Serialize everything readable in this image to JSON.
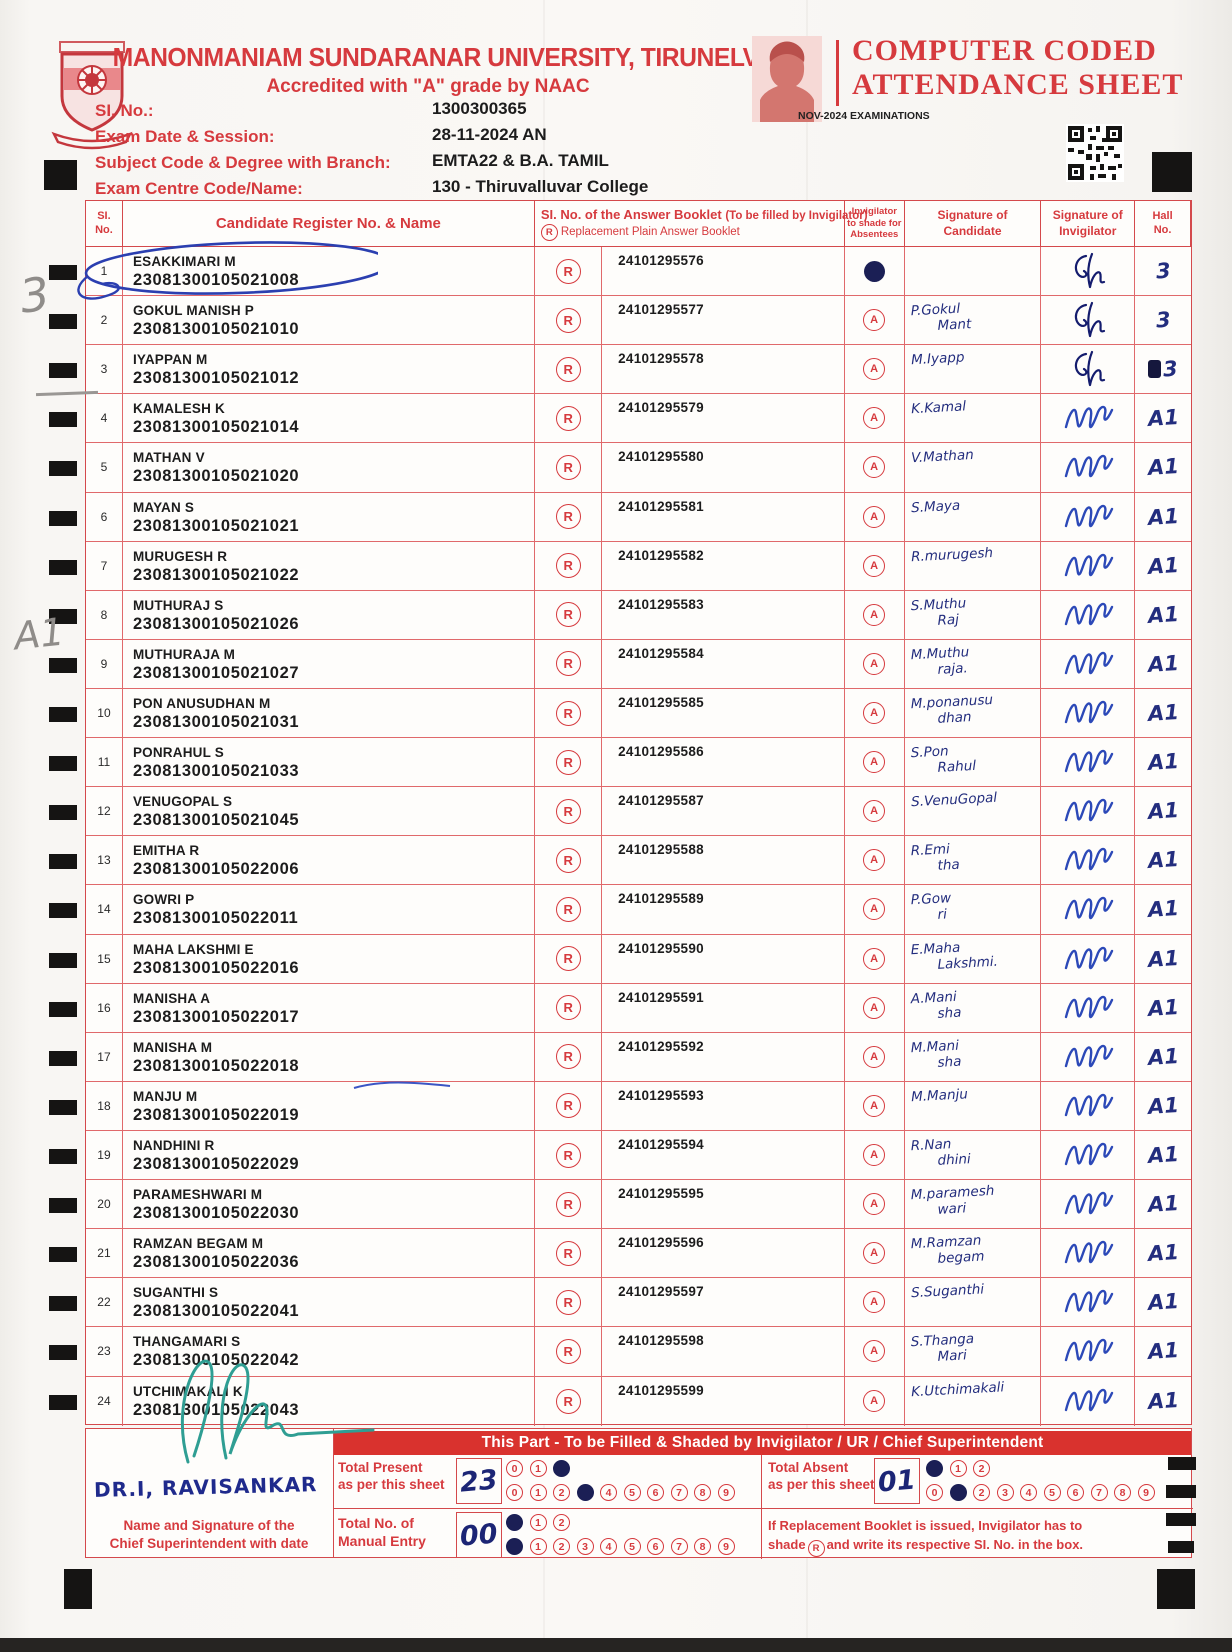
{
  "header": {
    "university": "MANONMANIAM SUNDARANAR UNIVERSITY, TIRUNELVELI",
    "accreditation": "Accredited with \"A\" grade by NAAC",
    "sheet_title_line1": "COMPUTER  CODED",
    "sheet_title_line2": "ATTENDANCE SHEET",
    "exam_session": "NOV-2024 EXAMINATIONS",
    "fields": [
      {
        "label": "SI. No.:",
        "value": "1300300365"
      },
      {
        "label": "Exam Date & Session:",
        "value": "28-11-2024 AN"
      },
      {
        "label": "Subject Code & Degree with Branch:",
        "value": "EMTA22 & B.A. TAMIL"
      },
      {
        "label": "Exam Centre Code/Name:",
        "value": "130 - Thiruvalluvar College"
      }
    ]
  },
  "table": {
    "headers": {
      "si_no": "SI.\nNo.",
      "si_no_l1": "SI.",
      "si_no_l2": "No.",
      "candidate": "Candidate Register No. & Name",
      "booklet_bold": "SI. No. of the Answer Booklet",
      "booklet_light": "(To be filled by Invigilator)",
      "booklet_l2": "Replacement Plain Answer Booklet",
      "absentee_l1": "Invigilator",
      "absentee_l2": "to shade for",
      "absentee_l3": "Absentees",
      "sig_cand_l1": "Signature of",
      "sig_cand_l2": "Candidate",
      "sig_inv_l1": "Signature of",
      "sig_inv_l2": "Invigilator",
      "hall_l1": "Hall",
      "hall_l2": "No."
    },
    "symbols": {
      "replacement": "R",
      "absent": "A"
    },
    "rows": [
      {
        "no": "1",
        "name": "ESAKKIMARI M",
        "reg": "23081300105021008",
        "booklet": "24101295576",
        "absent_shaded": true,
        "cand_sig": [],
        "inv_sig": "EM",
        "hall": "3"
      },
      {
        "no": "2",
        "name": "GOKUL MANISH P",
        "reg": "23081300105021010",
        "absent_shaded": false,
        "booklet": "24101295577",
        "cand_sig": [
          "P.Gokul",
          "Mant"
        ],
        "inv_sig": "EM",
        "hall": "3"
      },
      {
        "no": "3",
        "name": "IYAPPAN M",
        "reg": "23081300105021012",
        "absent_shaded": false,
        "booklet": "24101295578",
        "cand_sig": [
          "M.Iyapp"
        ],
        "inv_sig": "EM",
        "hall": "3",
        "hall_blob": true
      },
      {
        "no": "4",
        "name": "KAMALESH K",
        "reg": "23081300105021014",
        "absent_shaded": false,
        "booklet": "24101295579",
        "cand_sig": [
          "K.Kamal"
        ],
        "inv_sig": "W",
        "hall": "A1"
      },
      {
        "no": "5",
        "name": "MATHAN V",
        "reg": "23081300105021020",
        "absent_shaded": false,
        "booklet": "24101295580",
        "cand_sig": [
          "V.Mathan"
        ],
        "inv_sig": "W",
        "hall": "A1"
      },
      {
        "no": "6",
        "name": "MAYAN S",
        "reg": "23081300105021021",
        "absent_shaded": false,
        "booklet": "24101295581",
        "cand_sig": [
          "S.Maya"
        ],
        "inv_sig": "W",
        "hall": "A1"
      },
      {
        "no": "7",
        "name": "MURUGESH R",
        "reg": "23081300105021022",
        "absent_shaded": false,
        "booklet": "24101295582",
        "cand_sig": [
          "R.murugesh"
        ],
        "inv_sig": "W",
        "hall": "A1"
      },
      {
        "no": "8",
        "name": "MUTHURAJ S",
        "reg": "23081300105021026",
        "absent_shaded": false,
        "booklet": "24101295583",
        "cand_sig": [
          "S.Muthu",
          "Raj"
        ],
        "inv_sig": "W",
        "hall": "A1"
      },
      {
        "no": "9",
        "name": "MUTHURAJA M",
        "reg": "23081300105021027",
        "absent_shaded": false,
        "booklet": "24101295584",
        "cand_sig": [
          "M.Muthu",
          "raja."
        ],
        "inv_sig": "W",
        "hall": "A1"
      },
      {
        "no": "10",
        "name": "PON ANUSUDHAN M",
        "reg": "23081300105021031",
        "absent_shaded": false,
        "booklet": "24101295585",
        "cand_sig": [
          "M.ponanusu",
          "dhan"
        ],
        "inv_sig": "W",
        "hall": "A1"
      },
      {
        "no": "11",
        "name": "PONRAHUL S",
        "reg": "23081300105021033",
        "absent_shaded": false,
        "booklet": "24101295586",
        "cand_sig": [
          "S.Pon",
          "Rahul"
        ],
        "inv_sig": "W",
        "hall": "A1"
      },
      {
        "no": "12",
        "name": "VENUGOPAL S",
        "reg": "23081300105021045",
        "absent_shaded": false,
        "booklet": "24101295587",
        "cand_sig": [
          "S.VenuGopal"
        ],
        "inv_sig": "W",
        "hall": "A1"
      },
      {
        "no": "13",
        "name": "EMITHA R",
        "reg": "23081300105022006",
        "absent_shaded": false,
        "booklet": "24101295588",
        "cand_sig": [
          "R.Emi",
          "tha"
        ],
        "inv_sig": "W",
        "hall": "A1"
      },
      {
        "no": "14",
        "name": "GOWRI P",
        "reg": "23081300105022011",
        "absent_shaded": false,
        "booklet": "24101295589",
        "cand_sig": [
          "P.Gow",
          "ri"
        ],
        "inv_sig": "W",
        "hall": "A1"
      },
      {
        "no": "15",
        "name": "MAHA LAKSHMI E",
        "reg": "23081300105022016",
        "absent_shaded": false,
        "booklet": "24101295590",
        "cand_sig": [
          "E.Maha",
          "Lakshmi."
        ],
        "inv_sig": "W",
        "hall": "A1"
      },
      {
        "no": "16",
        "name": "MANISHA A",
        "reg": "23081300105022017",
        "absent_shaded": false,
        "booklet": "24101295591",
        "cand_sig": [
          "A.Mani",
          "sha"
        ],
        "inv_sig": "W",
        "hall": "A1"
      },
      {
        "no": "17",
        "name": "MANISHA M",
        "reg": "23081300105022018",
        "absent_shaded": false,
        "booklet": "24101295592",
        "cand_sig": [
          "M.Mani",
          "sha"
        ],
        "inv_sig": "W",
        "hall": "A1"
      },
      {
        "no": "18",
        "name": "MANJU M",
        "reg": "23081300105022019",
        "absent_shaded": false,
        "booklet": "24101295593",
        "cand_sig": [
          "M.Manju"
        ],
        "inv_sig": "W",
        "hall": "A1"
      },
      {
        "no": "19",
        "name": "NANDHINI R",
        "reg": "23081300105022029",
        "absent_shaded": false,
        "booklet": "24101295594",
        "cand_sig": [
          "R.Nan",
          "dhini"
        ],
        "inv_sig": "W",
        "hall": "A1"
      },
      {
        "no": "20",
        "name": "PARAMESHWARI M",
        "reg": "23081300105022030",
        "absent_shaded": false,
        "booklet": "24101295595",
        "cand_sig": [
          "M.paramesh",
          "wari"
        ],
        "inv_sig": "W",
        "hall": "A1"
      },
      {
        "no": "21",
        "name": "RAMZAN BEGAM M",
        "reg": "23081300105022036",
        "absent_shaded": false,
        "booklet": "24101295596",
        "cand_sig": [
          "M.Ramzan",
          "begam"
        ],
        "inv_sig": "W",
        "hall": "A1"
      },
      {
        "no": "22",
        "name": "SUGANTHI S",
        "reg": "23081300105022041",
        "absent_shaded": false,
        "booklet": "24101295597",
        "cand_sig": [
          "S.Suganthi"
        ],
        "inv_sig": "W",
        "hall": "A1"
      },
      {
        "no": "23",
        "name": "THANGAMARI S",
        "reg": "23081300105022042",
        "absent_shaded": false,
        "booklet": "24101295598",
        "cand_sig": [
          "S.Thanga",
          "Mari"
        ],
        "inv_sig": "W",
        "hall": "A1"
      },
      {
        "no": "24",
        "name": "UTCHIMAKALI K",
        "reg": "23081300105022043",
        "absent_shaded": false,
        "booklet": "24101295599",
        "cand_sig": [
          "K.Utchimakali"
        ],
        "inv_sig": "W",
        "hall": "A1"
      }
    ]
  },
  "footer": {
    "banner": "This Part - To be Filled & Shaded by Invigilator / UR / Chief Superintendent",
    "present": {
      "label_l1": "Total Present",
      "label_l2": "as per this sheet",
      "value": "23",
      "bubbles1": {
        "digits": [
          "0",
          "1",
          "2"
        ],
        "filled": 2
      },
      "bubbles2": {
        "digits": [
          "0",
          "1",
          "2",
          "3",
          "4",
          "5",
          "6",
          "7",
          "8",
          "9"
        ],
        "filled": 3
      }
    },
    "absent": {
      "label_l1": "Total Absent",
      "label_l2": "as per this sheet",
      "value": "01",
      "bubbles1": {
        "digits": [
          "0",
          "1",
          "2"
        ],
        "filled": 0
      },
      "bubbles2": {
        "digits": [
          "0",
          "1",
          "2",
          "3",
          "4",
          "5",
          "6",
          "7",
          "8",
          "9"
        ],
        "filled": 1
      }
    },
    "manual": {
      "label_l1": "Total No. of",
      "label_l2": "Manual Entry",
      "value": "00",
      "bubbles1": {
        "digits": [
          "0",
          "1",
          "2"
        ],
        "filled": 0
      },
      "bubbles2": {
        "digits": [
          "0",
          "1",
          "2",
          "3",
          "4",
          "5",
          "6",
          "7",
          "8",
          "9"
        ],
        "filled": 0
      }
    },
    "chief_label_l1": "Name and Signature of the",
    "chief_label_l2": "Chief Superintendent with date",
    "chief_signature": "DR.I, RAVISANKAR",
    "note_l1": "If Replacement Booklet is issued, Invigilator has to",
    "note_l2_pre": "shade",
    "note_l2_sym": "R",
    "note_l2_post": "and write its respective SI. No. in the box."
  },
  "annotations": {
    "pencil_top": "3",
    "pencil_mid": "A1"
  },
  "colors": {
    "brand_red": "#d63a3e",
    "banner_red": "#d9322e",
    "ink_navy": "#1c2575",
    "ink_blue": "#2c49b8",
    "ink_teal": "#2f9e93"
  }
}
